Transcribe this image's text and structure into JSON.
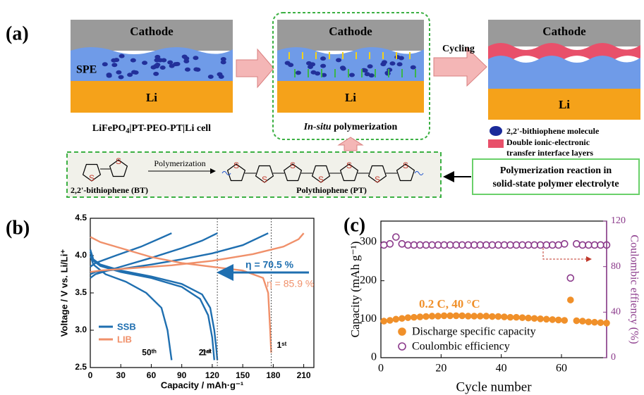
{
  "panel_a": {
    "label": "(a)",
    "cathode": "Cathode",
    "anode": "Li",
    "spe": "SPE",
    "cell_caption": {
      "main": "LiFePO",
      "sub": "4",
      "rest": "|PT-PEO-PT|Li cell"
    },
    "in_situ": {
      "italic": "In-situ",
      "rest": " polymerization"
    },
    "cycling": "Cycling",
    "legend": {
      "molecule": "2,2'-bithiophene molecule",
      "layers": [
        "Double ionic-electronic",
        "transfer interface layers"
      ]
    },
    "reaction_box": [
      "Polymerization reaction in",
      "solid-state polymer electrolyte"
    ],
    "arrow_label": "Polymerization",
    "monomer": "2,2'-bithiophene (BT)",
    "polymer": "Polythiophene (PT)",
    "atom_label": "S"
  },
  "chart_data": [
    {
      "type": "line",
      "panel_label": "(b)",
      "xlabel": "Capacity  /  mAh·g⁻¹",
      "ylabel": "Voltage  /  V vs. Li/Li⁺",
      "xlim": [
        0,
        220
      ],
      "ylim": [
        2.5,
        4.5
      ],
      "xticks": [
        0,
        30,
        60,
        90,
        120,
        150,
        180,
        210
      ],
      "yticks": [
        2.5,
        {
          "value": 3,
          "label": "3.0"
        },
        3.5,
        {
          "value": 4,
          "label": "4.0"
        },
        4.5
      ],
      "annotations": [
        "η = 70.5 %",
        "η = 85.9 %"
      ],
      "series": [
        {
          "name": "SSB",
          "color": "#1f6fb0",
          "curves": [
            {
              "label": "1ˢᵗ",
              "x": [
                0,
                3,
                10,
                30,
                60,
                90,
                110,
                118,
                122,
                124,
                125
              ],
              "values": [
                4.08,
                3.95,
                3.88,
                3.8,
                3.72,
                3.62,
                3.48,
                3.3,
                3.0,
                2.75,
                2.6
              ]
            },
            {
              "x": [
                0,
                5,
                30,
                60,
                90,
                120,
                150,
                175
              ],
              "values": [
                3.75,
                3.78,
                3.82,
                3.88,
                3.95,
                4.03,
                4.14,
                4.3
              ]
            },
            {
              "label": "2ⁿᵈ",
              "x": [
                0,
                3,
                10,
                30,
                60,
                90,
                108,
                116,
                120,
                122
              ],
              "values": [
                4.05,
                3.93,
                3.86,
                3.78,
                3.7,
                3.58,
                3.42,
                3.2,
                2.9,
                2.6
              ]
            },
            {
              "x": [
                0,
                5,
                30,
                60,
                90,
                110,
                125
              ],
              "values": [
                3.7,
                3.75,
                3.85,
                3.97,
                4.1,
                4.2,
                4.3
              ]
            },
            {
              "label": "50ᵗʰ",
              "x": [
                0,
                3,
                15,
                35,
                55,
                70,
                76,
                79,
                80
              ],
              "values": [
                4.0,
                3.88,
                3.75,
                3.65,
                3.5,
                3.3,
                3.0,
                2.7,
                2.6
              ]
            },
            {
              "x": [
                0,
                5,
                25,
                50,
                70,
                80
              ],
              "values": [
                3.85,
                3.9,
                4.0,
                4.12,
                4.24,
                4.3
              ]
            }
          ]
        },
        {
          "name": "LIB",
          "color": "#f0906a",
          "curves": [
            {
              "label": "1ˢᵗ",
              "x": [
                0,
                10,
                30,
                60,
                90,
                120,
                150,
                170,
                175,
                177,
                178
              ],
              "values": [
                4.25,
                4.18,
                4.1,
                3.98,
                3.9,
                3.85,
                3.8,
                3.7,
                3.5,
                3.0,
                2.7
              ]
            },
            {
              "x": [
                0,
                10,
                40,
                80,
                120,
                160,
                190,
                205,
                210
              ],
              "values": [
                3.78,
                3.8,
                3.83,
                3.87,
                3.93,
                4.02,
                4.12,
                4.22,
                4.3
              ]
            }
          ]
        }
      ]
    },
    {
      "type": "scatter",
      "panel_label": "(c)",
      "xlabel": "Cycle number",
      "ylabel": "Capacity (mAh g⁻¹)",
      "y2label": "Coulombic effiency (%)",
      "annotation": "0.2 C, 40 °C",
      "xlim": [
        0,
        75
      ],
      "ylim": [
        0,
        355
      ],
      "y2lim": [
        0,
        120
      ],
      "xticks": [
        0,
        20,
        40,
        60
      ],
      "yticks": [
        0,
        100,
        200,
        300
      ],
      "y2ticks": [
        0,
        40,
        80,
        120
      ],
      "series": [
        {
          "name": "Discharge specific capacity",
          "color": "#f0902a",
          "marker": "filled",
          "x": [
            1,
            3,
            5,
            7,
            9,
            11,
            13,
            15,
            17,
            19,
            21,
            23,
            25,
            27,
            29,
            31,
            33,
            35,
            37,
            39,
            41,
            43,
            45,
            47,
            49,
            51,
            53,
            55,
            57,
            59,
            61,
            63,
            65,
            67,
            69,
            71,
            73,
            75
          ],
          "values": [
            95,
            97,
            100,
            102,
            104,
            105,
            106,
            107,
            108,
            108,
            109,
            109,
            109,
            109,
            108,
            108,
            108,
            108,
            107,
            107,
            106,
            105,
            105,
            104,
            103,
            102,
            101,
            100,
            99,
            98,
            97,
            150,
            96,
            95,
            93,
            92,
            91,
            90
          ]
        },
        {
          "name": "Coulombic efficiency",
          "color": "#8b3a8b",
          "marker": "open",
          "axis": "y2",
          "x": [
            1,
            3,
            5,
            7,
            9,
            11,
            13,
            15,
            17,
            19,
            21,
            23,
            25,
            27,
            29,
            31,
            33,
            35,
            37,
            39,
            41,
            43,
            45,
            47,
            49,
            51,
            53,
            55,
            57,
            59,
            61,
            63,
            65,
            67,
            69,
            71,
            73,
            75
          ],
          "values": [
            99,
            100,
            106,
            100,
            99,
            99,
            99,
            99,
            99,
            99,
            99,
            99,
            99,
            99,
            99,
            99,
            99,
            99,
            99,
            99,
            99,
            99,
            99,
            99,
            99,
            99,
            99,
            99,
            99,
            99,
            100,
            70,
            100,
            99,
            99,
            99,
            99,
            99
          ]
        }
      ]
    }
  ]
}
